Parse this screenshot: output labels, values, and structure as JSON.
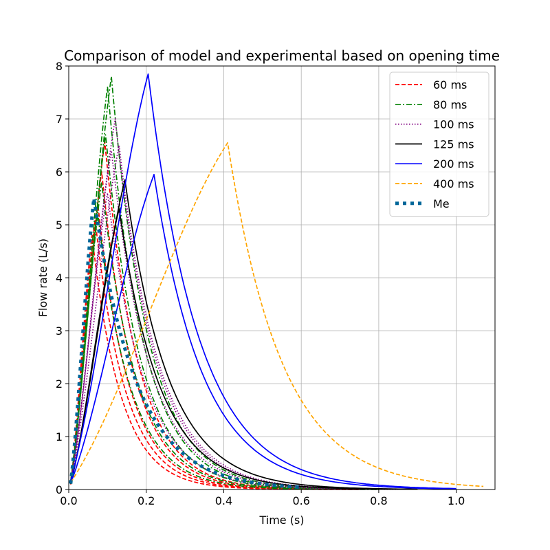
{
  "chart_data": {
    "type": "line",
    "title": "Comparison of model and experimental based on opening time",
    "xlabel": "Time (s)",
    "ylabel": "Flow rate (L/s)",
    "xlim": [
      0.0,
      1.1
    ],
    "ylim": [
      0,
      8
    ],
    "xticks": [
      "0.0",
      "0.2",
      "0.4",
      "0.6",
      "0.8",
      "1.0"
    ],
    "yticks": [
      "0",
      "1",
      "2",
      "3",
      "4",
      "5",
      "6",
      "7",
      "8"
    ],
    "grid": true,
    "legend_position": "top-right",
    "series": [
      {
        "name": "60 ms",
        "color": "#ff0000",
        "style": "dashed",
        "curves": [
          {
            "peak_t": 0.06,
            "peak_q": 4.8,
            "tau": 0.075,
            "end_t": 0.75
          },
          {
            "peak_t": 0.068,
            "peak_q": 5.1,
            "tau": 0.078,
            "end_t": 0.75
          },
          {
            "peak_t": 0.075,
            "peak_q": 5.4,
            "tau": 0.08,
            "end_t": 0.75
          },
          {
            "peak_t": 0.085,
            "peak_q": 6.0,
            "tau": 0.083,
            "end_t": 0.75
          },
          {
            "peak_t": 0.093,
            "peak_q": 6.57,
            "tau": 0.085,
            "end_t": 0.75
          }
        ]
      },
      {
        "name": "80 ms",
        "color": "#008000",
        "style": "dashdot",
        "curves": [
          {
            "peak_t": 0.075,
            "peak_q": 5.2,
            "tau": 0.085,
            "end_t": 0.8
          },
          {
            "peak_t": 0.085,
            "peak_q": 5.8,
            "tau": 0.088,
            "end_t": 0.8
          },
          {
            "peak_t": 0.095,
            "peak_q": 6.7,
            "tau": 0.09,
            "end_t": 0.8
          },
          {
            "peak_t": 0.1,
            "peak_q": 7.6,
            "tau": 0.092,
            "end_t": 0.8
          },
          {
            "peak_t": 0.11,
            "peak_q": 7.8,
            "tau": 0.095,
            "end_t": 0.8
          }
        ]
      },
      {
        "name": "100 ms",
        "color": "#800080",
        "style": "dotted",
        "curves": [
          {
            "peak_t": 0.1,
            "peak_q": 5.6,
            "tau": 0.095,
            "end_t": 0.85
          },
          {
            "peak_t": 0.11,
            "peak_q": 6.4,
            "tau": 0.098,
            "end_t": 0.85
          },
          {
            "peak_t": 0.12,
            "peak_q": 7.0,
            "tau": 0.1,
            "end_t": 0.85
          },
          {
            "peak_t": 0.13,
            "peak_q": 6.5,
            "tau": 0.102,
            "end_t": 0.85
          }
        ]
      },
      {
        "name": "125 ms",
        "color": "#000000",
        "style": "solid",
        "curves": [
          {
            "peak_t": 0.13,
            "peak_q": 5.3,
            "tau": 0.105,
            "end_t": 0.9
          },
          {
            "peak_t": 0.145,
            "peak_q": 5.85,
            "tau": 0.11,
            "end_t": 0.9
          }
        ]
      },
      {
        "name": "200 ms",
        "color": "#0000ff",
        "style": "solid",
        "curves": [
          {
            "peak_t": 0.205,
            "peak_q": 7.85,
            "tau": 0.13,
            "end_t": 1.0
          },
          {
            "peak_t": 0.22,
            "peak_q": 5.95,
            "tau": 0.125,
            "end_t": 1.0
          }
        ]
      },
      {
        "name": "400 ms",
        "color": "#ffa500",
        "style": "dashed",
        "curves": [
          {
            "peak_t": 0.41,
            "peak_q": 6.55,
            "tau": 0.14,
            "end_t": 1.07
          }
        ]
      },
      {
        "name": "Me",
        "color": "#006699",
        "style": "thick-dotted",
        "curves": [
          {
            "peak_t": 0.065,
            "peak_q": 5.5,
            "tau": 0.11,
            "end_t": 0.6
          }
        ]
      }
    ]
  }
}
